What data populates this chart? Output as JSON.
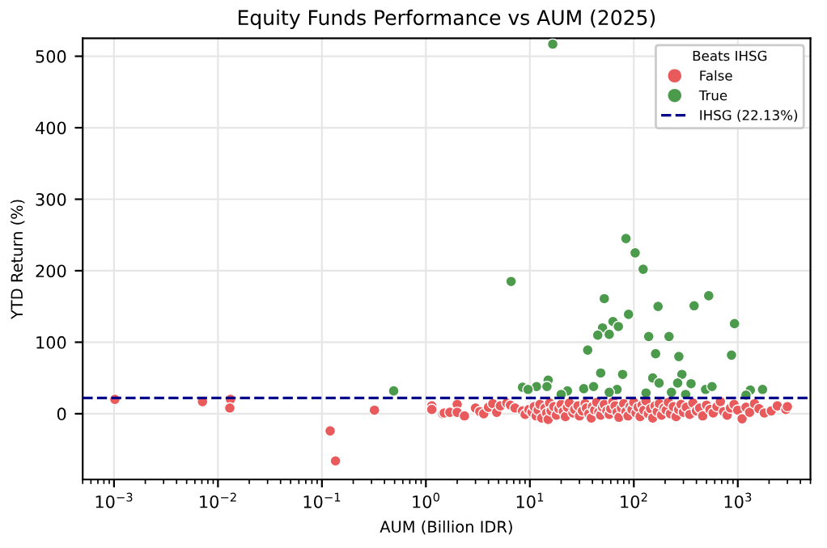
{
  "chart_data": {
    "type": "scatter",
    "title": "Equity Funds Performance vs AUM (2025)",
    "xlabel": "AUM (Billion IDR)",
    "ylabel": "YTD Return (%)",
    "legend_title": "Beats IHSG",
    "log": "x",
    "xlim": [
      0.0005,
      5000
    ],
    "ylim": [
      -92,
      525
    ],
    "xticks": [
      {
        "value": 0.001,
        "label": "10$^{−3}$"
      },
      {
        "value": 0.01,
        "label": "10$^{−2}$"
      },
      {
        "value": 0.1,
        "label": "10$^{−1}$"
      },
      {
        "value": 1,
        "label": "10$^{0}$"
      },
      {
        "value": 10,
        "label": "10$^{1}$"
      },
      {
        "value": 100,
        "label": "10$^{2}$"
      },
      {
        "value": 1000,
        "label": "10$^{3}$"
      }
    ],
    "yticks": [
      0,
      100,
      200,
      300,
      400,
      500
    ],
    "grid": true,
    "legend": "top right",
    "marker": "circle",
    "series": [
      {
        "name": "False",
        "color": "#e85a5c",
        "x": [
          0.00102,
          0.0071,
          0.0132,
          0.013,
          0.12,
          0.135,
          0.32,
          1.14,
          1.14,
          1.45,
          1.5,
          1.7,
          2.0,
          2.0,
          2.35,
          3.0,
          3.3,
          3.6,
          4.0,
          4.4,
          4.8,
          5.2,
          6.0,
          6.5,
          7.2,
          8.5,
          9.0,
          9.8,
          10.5,
          11,
          11.5,
          12,
          12.5,
          13,
          14,
          14.5,
          15,
          15.5,
          16,
          17,
          18,
          19,
          20,
          21,
          22,
          23,
          24,
          26,
          27,
          29,
          30,
          32,
          34,
          35,
          37,
          39,
          40,
          42,
          44,
          46,
          48,
          50,
          52,
          55,
          58,
          60,
          63,
          66,
          69,
          72,
          76,
          80,
          84,
          88,
          92,
          96,
          100,
          105,
          110,
          115,
          120,
          125,
          131,
          138,
          145,
          152,
          160,
          168,
          176,
          185,
          195,
          205,
          215,
          225,
          240,
          255,
          270,
          285,
          300,
          320,
          345,
          370,
          400,
          430,
          460,
          500,
          540,
          580,
          630,
          680,
          730,
          790,
          850,
          920,
          1000,
          1100,
          1200,
          1300,
          1450,
          1600,
          1800,
          2100,
          2400,
          2900,
          3000
        ],
        "values": [
          20,
          17,
          20,
          8,
          -24,
          -66,
          5,
          11,
          6,
          0,
          1,
          2,
          13,
          2,
          -3,
          8,
          3,
          0,
          9,
          14,
          2,
          11,
          15,
          12,
          8,
          4,
          -1,
          6,
          2,
          10,
          -3,
          5,
          13,
          -6,
          8,
          1,
          -8,
          15,
          4,
          10,
          -2,
          7,
          13,
          3,
          -4,
          9,
          15,
          1,
          6,
          11,
          -3,
          4,
          14,
          8,
          0,
          -6,
          10,
          5,
          16,
          2,
          -2,
          9,
          13,
          4,
          -1,
          7,
          17,
          11,
          2,
          -5,
          8,
          14,
          3,
          -3,
          10,
          6,
          16,
          1,
          9,
          -4,
          12,
          5,
          18,
          0,
          7,
          -6,
          11,
          3,
          14,
          -2,
          8,
          5,
          16,
          0,
          10,
          -4,
          6,
          13,
          2,
          9,
          -1,
          15,
          4,
          8,
          -3,
          12,
          6,
          1,
          10,
          17,
          3,
          -2,
          8,
          13,
          5,
          -7,
          9,
          2,
          14,
          7,
          1,
          4,
          11,
          6,
          10
        ]
      },
      {
        "name": "True",
        "color": "#4c9a4c",
        "x": [
          0.49,
          6.6,
          16.6,
          84,
          103,
          123,
          52,
          525,
          380,
          171,
          89,
          930,
          63,
          71,
          50,
          45,
          58,
          139,
          218,
          36,
          162,
          271,
          870,
          48,
          78,
          290,
          152,
          175,
          264,
          355,
          15,
          11.6,
          8.5,
          9.6,
          14.6,
          23,
          33,
          41,
          69,
          58,
          230,
          490,
          565,
          1320,
          1730,
          131,
          20,
          315,
          1200
        ],
        "values": [
          32,
          185,
          517,
          245,
          225,
          202,
          161,
          165,
          151,
          150,
          139,
          126,
          129,
          122,
          120,
          110,
          111,
          108,
          108,
          89,
          84,
          80,
          82,
          57,
          55,
          55,
          50,
          43,
          43,
          42,
          47,
          38,
          37,
          34,
          38,
          32,
          35,
          38,
          34,
          30,
          30,
          34,
          38,
          33,
          34,
          29,
          27,
          27,
          26
        ]
      }
    ],
    "ref_lines": [
      {
        "axis": "y",
        "value": 22.13,
        "label": "IHSG (22.13%)",
        "color": "#00008b",
        "line_style": "dashed"
      }
    ]
  }
}
